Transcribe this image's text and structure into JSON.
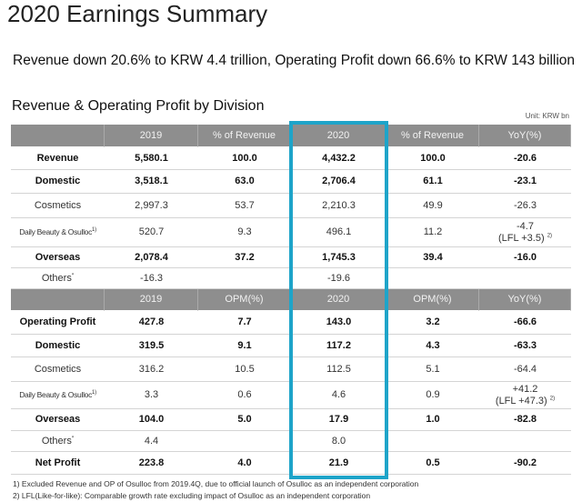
{
  "header": {
    "title": "2020 Earnings Summary",
    "headline": "Revenue down 20.6% to KRW 4.4 trillion, Operating Profit down 66.6% to KRW 143 billion"
  },
  "section_title": "Revenue & Operating Profit by Division",
  "unit": "Unit: KRW bn",
  "table": {
    "sections": [
      {
        "header": [
          "2019",
          "% of Revenue",
          "2020",
          "% of Revenue",
          "YoY(%)"
        ],
        "rows": [
          {
            "label": "Revenue",
            "cells": [
              "5,580.1",
              "100.0",
              "4,432.2",
              "100.0",
              "-20.6"
            ]
          },
          {
            "label": "Domestic",
            "cells": [
              "3,518.1",
              "63.0",
              "2,706.4",
              "61.1",
              "-23.1"
            ]
          },
          {
            "label": "Cosmetics",
            "cells": [
              "2,997.3",
              "53.7",
              "2,210.3",
              "49.9",
              "-26.3"
            ]
          },
          {
            "label": "Daily Beauty & Osulloc",
            "note": "1)",
            "cells": [
              "520.7",
              "9.3",
              "496.1",
              "11.2",
              {
                "value": "-4.7",
                "lfl": "(LFL +3.5)",
                "note": "2)"
              }
            ]
          },
          {
            "label": "Overseas",
            "cells": [
              "2,078.4",
              "37.2",
              "1,745.3",
              "39.4",
              "-16.0"
            ]
          },
          {
            "label": "Others",
            "note": "*",
            "cells": [
              "-16.3",
              null,
              "-19.6",
              null,
              null
            ]
          }
        ]
      },
      {
        "header": [
          "2019",
          "OPM(%)",
          "2020",
          "OPM(%)",
          "YoY(%)"
        ],
        "rows": [
          {
            "label": "Operating Profit",
            "cells": [
              "427.8",
              "7.7",
              "143.0",
              "3.2",
              "-66.6"
            ]
          },
          {
            "label": "Domestic",
            "cells": [
              "319.5",
              "9.1",
              "117.2",
              "4.3",
              "-63.3"
            ]
          },
          {
            "label": "Cosmetics",
            "cells": [
              "316.2",
              "10.5",
              "112.5",
              "5.1",
              "-64.4"
            ]
          },
          {
            "label": "Daily Beauty & Osulloc",
            "note": "1)",
            "cells": [
              "3.3",
              "0.6",
              "4.6",
              "0.9",
              {
                "value": "+41.2",
                "lfl": "(LFL +47.3)",
                "note": "2)"
              }
            ]
          },
          {
            "label": "Overseas",
            "cells": [
              "104.0",
              "5.0",
              "17.9",
              "1.0",
              "-82.8"
            ]
          },
          {
            "label": "Others",
            "note": "*",
            "cells": [
              "4.4",
              null,
              "8.0",
              null,
              null
            ]
          },
          {
            "label": "Net Profit",
            "cells": [
              "223.8",
              "4.0",
              "21.9",
              "0.5",
              "-90.2"
            ]
          }
        ]
      }
    ]
  },
  "footnotes": [
    "1) Excluded Revenue and OP of Osulloc from 2019.4Q, due to official launch of Osulloc as an independent corporation",
    "2) LFL(Like-for-like): Comparable growth rate excluding impact of Osulloc as an independent corporation"
  ]
}
